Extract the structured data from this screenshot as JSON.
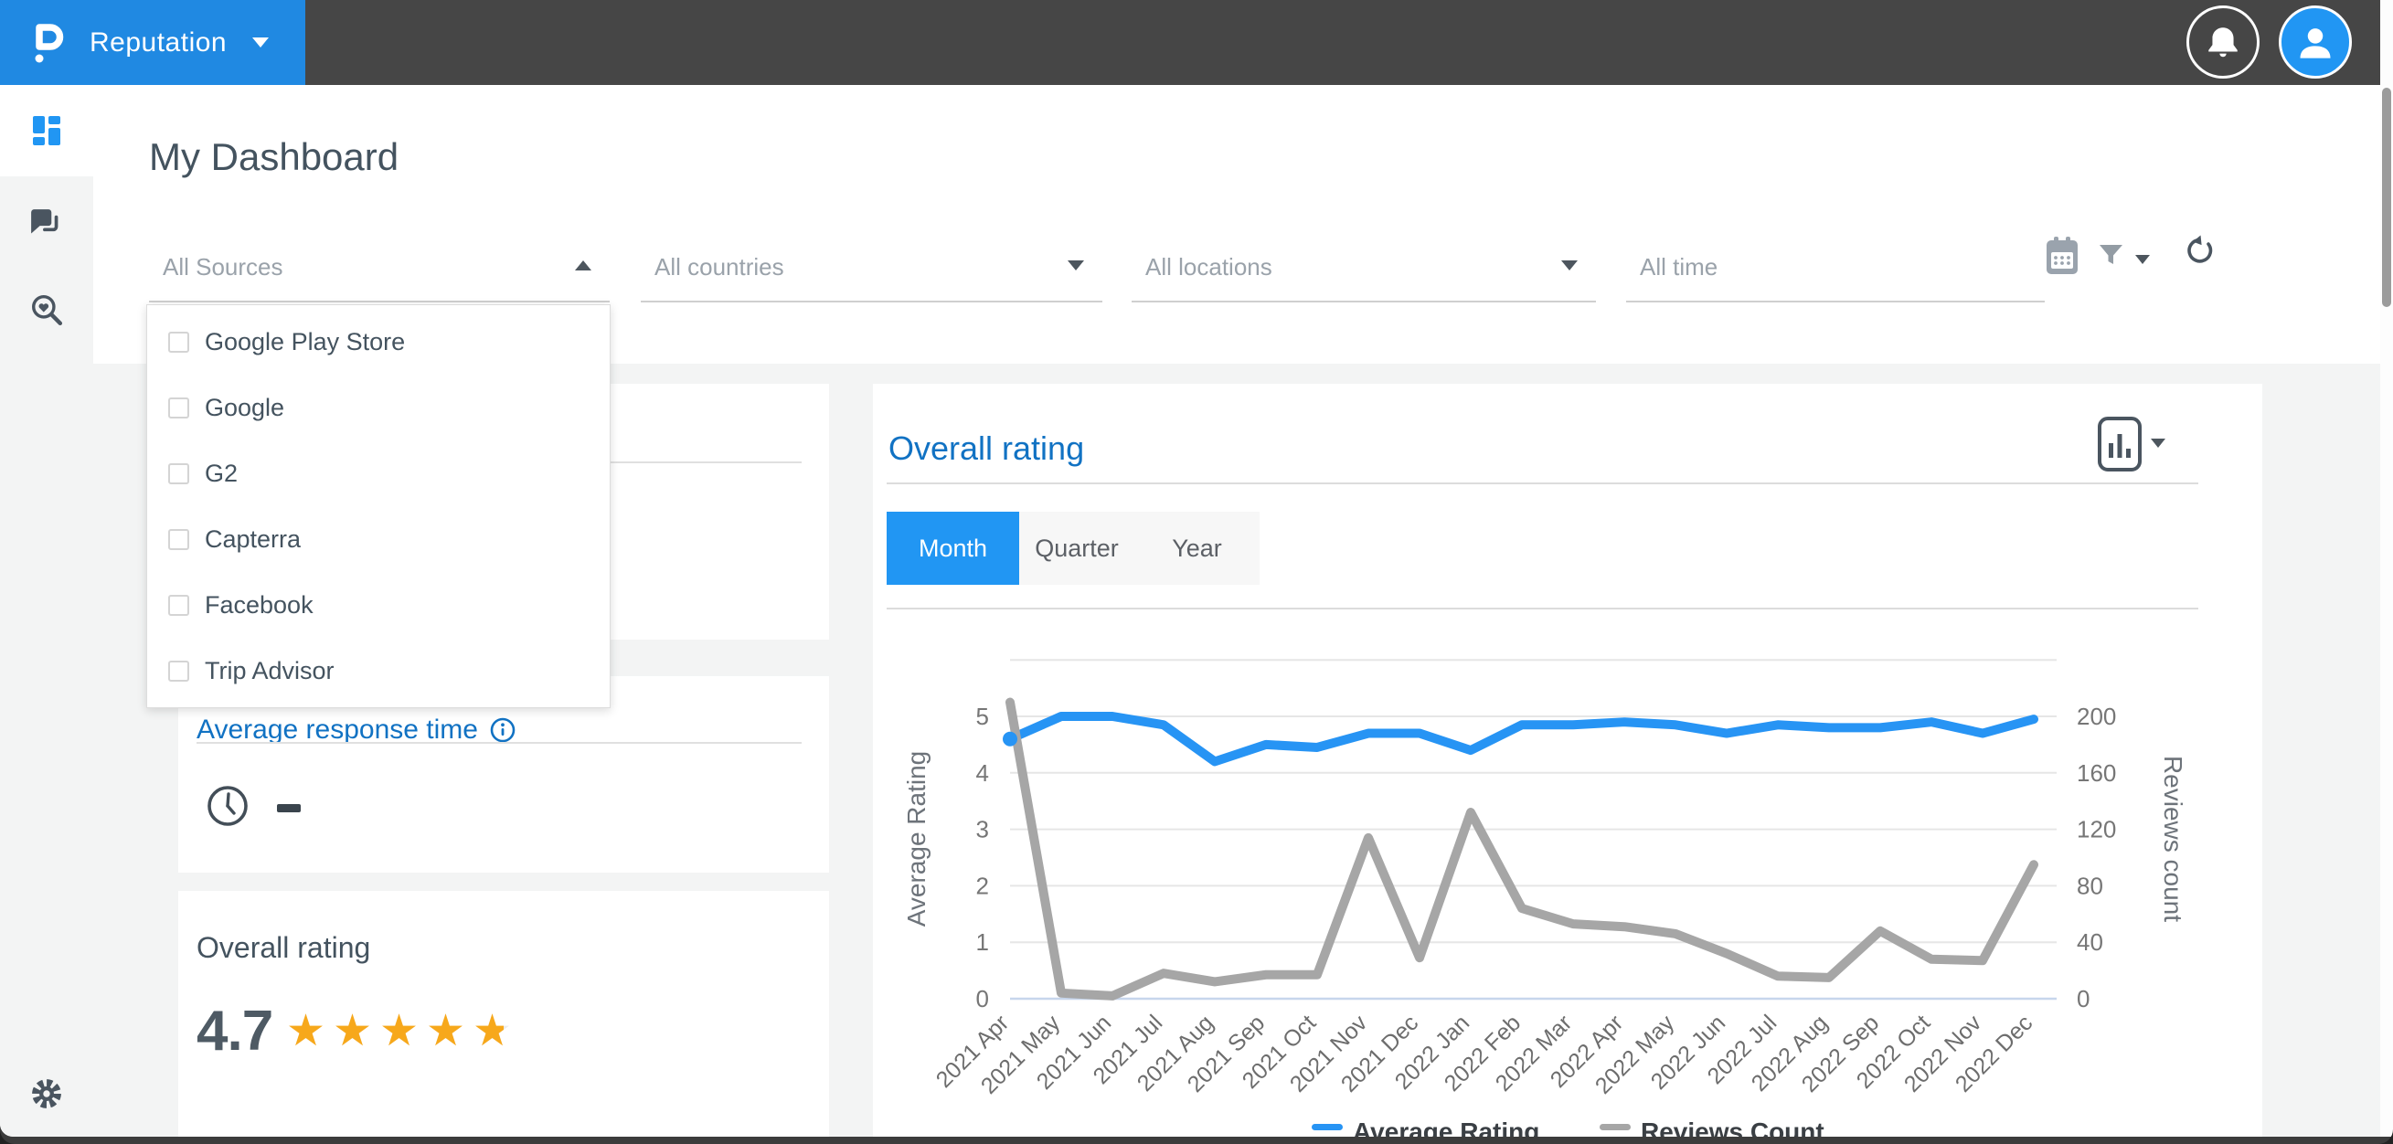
{
  "colors": {
    "accent": "#2196f3",
    "header_dark": "#464646",
    "title_blue": "#1172c3",
    "star": "#f7a81b",
    "rating_line": "#2794f4",
    "reviews_line": "#a6a6a6"
  },
  "header": {
    "product_name": "Reputation"
  },
  "page_title": "My Dashboard",
  "filters": {
    "sources": {
      "placeholder": "All Sources",
      "expanded": true,
      "options": [
        "Google Play Store",
        "Google",
        "G2",
        "Capterra",
        "Facebook",
        "Trip Advisor"
      ]
    },
    "countries": {
      "placeholder": "All countries"
    },
    "locations": {
      "placeholder": "All locations"
    },
    "time": {
      "placeholder": "All time"
    }
  },
  "cards": {
    "response_time": {
      "title": "Average response time",
      "value": "-"
    },
    "rating_summary": {
      "title": "Overall rating",
      "value": "4.7",
      "max_stars": 5
    }
  },
  "chart_card": {
    "title": "Overall rating",
    "tabs": [
      "Month",
      "Quarter",
      "Year"
    ],
    "active_tab": "Month"
  },
  "chart_data": {
    "type": "line",
    "title": "Overall rating",
    "categories": [
      "2021 Apr",
      "2021 May",
      "2021 Jun",
      "2021 Jul",
      "2021 Aug",
      "2021 Sep",
      "2021 Oct",
      "2021 Nov",
      "2021 Dec",
      "2022 Jan",
      "2022 Feb",
      "2022 Mar",
      "2022 Apr",
      "2022 May",
      "2022 Jun",
      "2022 Jul",
      "2022 Aug",
      "2022 Sep",
      "2022 Oct",
      "2022 Nov",
      "2022 Dec"
    ],
    "series": [
      {
        "name": "Average Rating",
        "axis": "left",
        "color": "#2794f4",
        "values": [
          4.6,
          5.0,
          5.0,
          4.85,
          4.2,
          4.5,
          4.45,
          4.7,
          4.7,
          4.4,
          4.85,
          4.85,
          4.9,
          4.85,
          4.7,
          4.85,
          4.8,
          4.8,
          4.9,
          4.7,
          4.95
        ]
      },
      {
        "name": "Reviews Count",
        "axis": "right",
        "color": "#a6a6a6",
        "values": [
          210,
          4,
          2,
          18,
          12,
          17,
          17,
          114,
          29,
          132,
          64,
          53,
          51,
          46,
          32,
          16,
          15,
          48,
          28,
          27,
          95
        ]
      }
    ],
    "left_axis": {
      "label": "Average Rating",
      "min": 0,
      "max": 5,
      "tick_step": 1
    },
    "right_axis": {
      "label": "Reviews count",
      "min": 0,
      "max": 200,
      "tick_step": 40
    },
    "grid": true,
    "legend_position": "bottom",
    "x_tick_rotation": -45
  }
}
